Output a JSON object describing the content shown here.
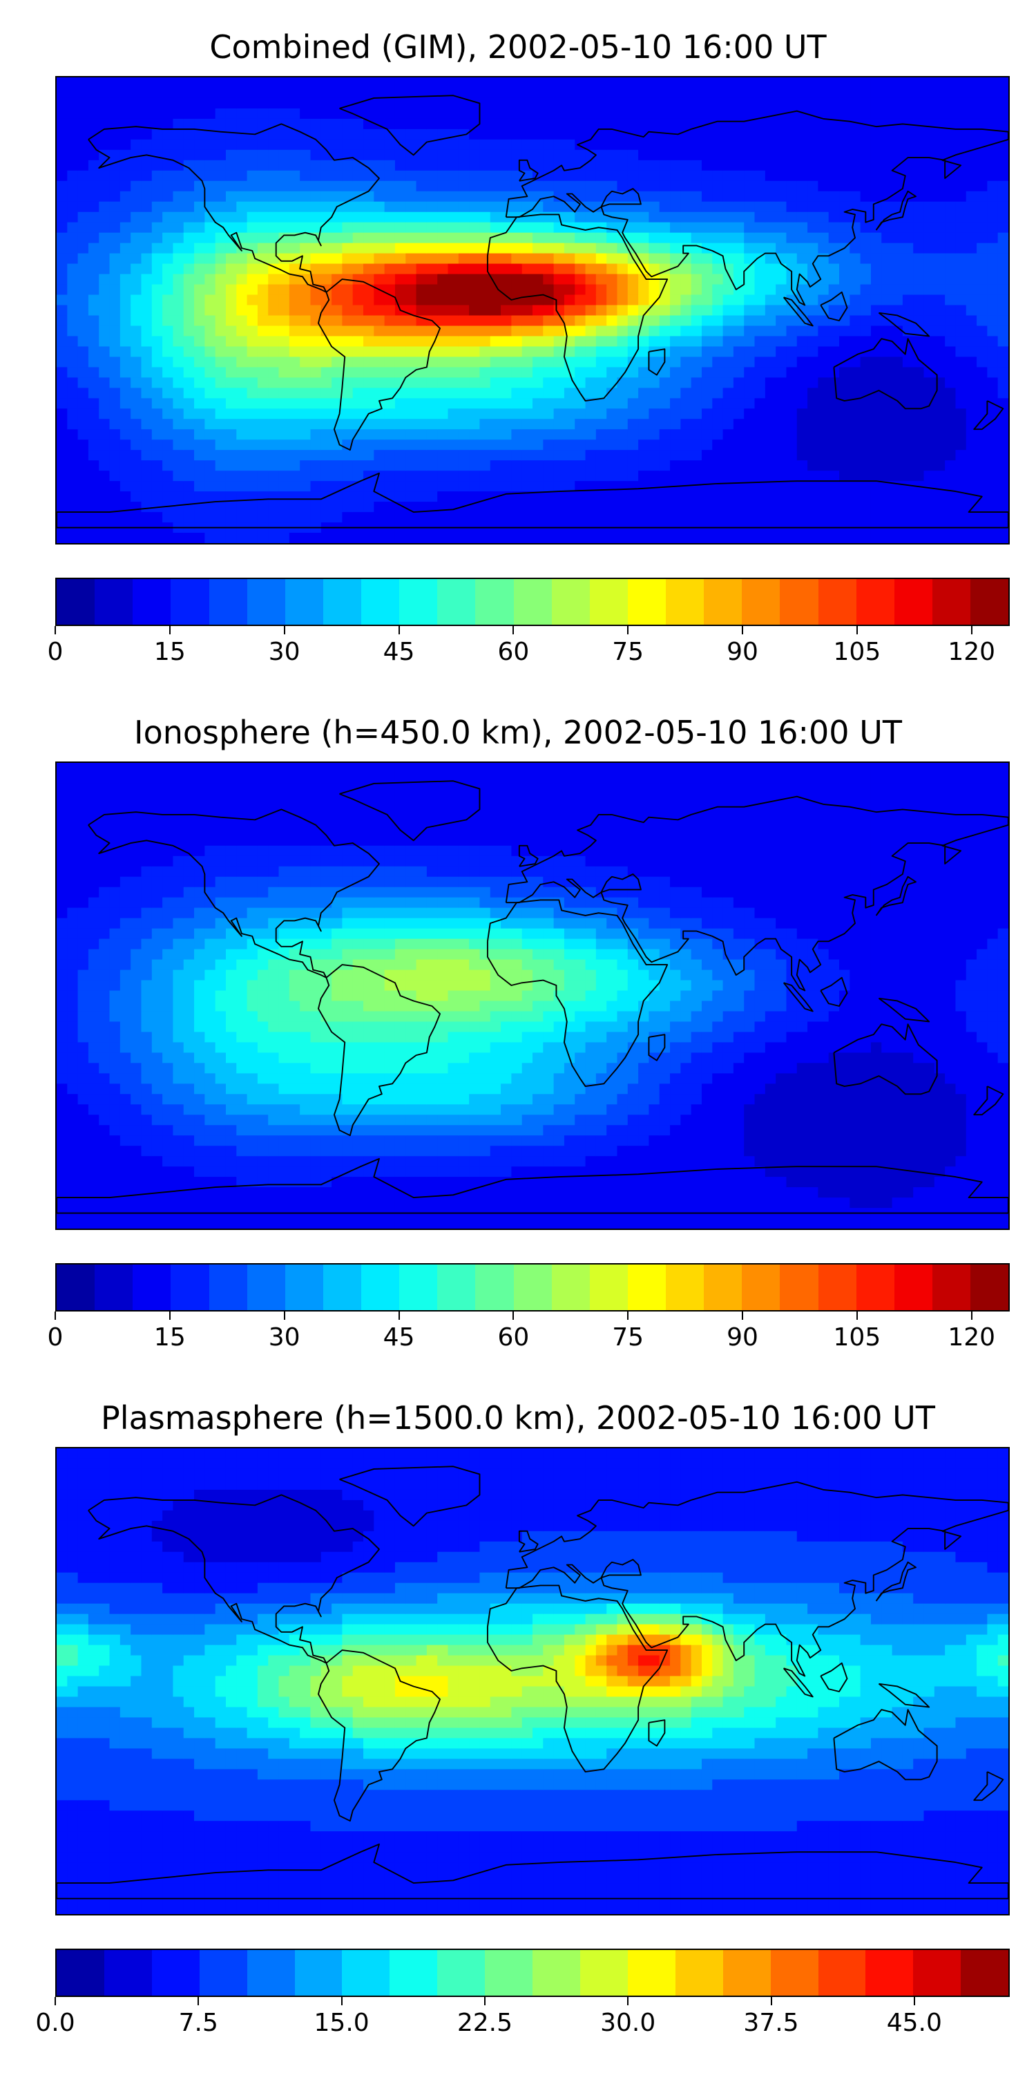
{
  "panels": [
    {
      "title": "Combined (GIM), 2002-05-10 16:00 UT",
      "colorbar": {
        "min": 0,
        "max": 125,
        "levels": 25,
        "ticks": [
          "0",
          "15",
          "30",
          "45",
          "60",
          "75",
          "90",
          "105",
          "120"
        ],
        "tick_values": [
          0,
          15,
          30,
          45,
          60,
          75,
          90,
          105,
          120
        ]
      },
      "field": {
        "background": 12,
        "blobs": [
          {
            "lon": -50,
            "lat": 0,
            "sx": 80,
            "sy": 30,
            "amp": 40
          },
          {
            "lon": -40,
            "lat": 7,
            "sx": 45,
            "sy": 15,
            "amp": 55
          },
          {
            "lon": 10,
            "lat": 8,
            "sx": 35,
            "sy": 12,
            "amp": 45
          },
          {
            "lon": -110,
            "lat": -10,
            "sx": 30,
            "sy": 40,
            "amp": 20
          },
          {
            "lon": 80,
            "lat": 15,
            "sx": 40,
            "sy": 15,
            "amp": 20
          },
          {
            "lon": -20,
            "lat": -35,
            "sx": 55,
            "sy": 15,
            "amp": 12
          },
          {
            "lon": 130,
            "lat": -35,
            "sx": 40,
            "sy": 20,
            "amp": -8
          }
        ]
      }
    },
    {
      "title": "Ionosphere  (h=450.0 km), 2002-05-10 16:00 UT",
      "colorbar": {
        "min": 0,
        "max": 125,
        "levels": 25,
        "ticks": [
          "0",
          "15",
          "30",
          "45",
          "60",
          "75",
          "90",
          "105",
          "120"
        ],
        "tick_values": [
          0,
          15,
          30,
          45,
          60,
          75,
          90,
          105,
          120
        ]
      },
      "field": {
        "background": 10,
        "blobs": [
          {
            "lon": -50,
            "lat": -5,
            "sx": 75,
            "sy": 32,
            "amp": 35
          },
          {
            "lon": -30,
            "lat": 10,
            "sx": 45,
            "sy": 15,
            "amp": 25
          },
          {
            "lon": -110,
            "lat": -10,
            "sx": 30,
            "sy": 35,
            "amp": 10
          },
          {
            "lon": 50,
            "lat": 5,
            "sx": 40,
            "sy": 14,
            "amp": 10
          },
          {
            "lon": -30,
            "lat": -40,
            "sx": 50,
            "sy": 12,
            "amp": 12
          },
          {
            "lon": 110,
            "lat": -40,
            "sx": 45,
            "sy": 15,
            "amp": -6
          }
        ]
      }
    },
    {
      "title": "Plasmasphere (h=1500.0 km), 2002-05-10 16:00 UT",
      "colorbar": {
        "min": 0,
        "max": 50,
        "levels": 20,
        "ticks": [
          "0.0",
          "7.5",
          "15.0",
          "22.5",
          "30.0",
          "37.5",
          "45.0"
        ],
        "tick_values": [
          0,
          7.5,
          15,
          22.5,
          30,
          37.5,
          45
        ]
      },
      "field": {
        "background": 7,
        "blobs": [
          {
            "lon": 10,
            "lat": 0,
            "sx": 110,
            "sy": 22,
            "amp": 18
          },
          {
            "lon": 45,
            "lat": 10,
            "sx": 18,
            "sy": 10,
            "amp": 20
          },
          {
            "lon": -55,
            "lat": -3,
            "sx": 35,
            "sy": 14,
            "amp": 8
          },
          {
            "lon": -175,
            "lat": 10,
            "sx": 15,
            "sy": 10,
            "amp": 9
          },
          {
            "lon": -100,
            "lat": 55,
            "sx": 40,
            "sy": 18,
            "amp": -4
          }
        ]
      }
    }
  ],
  "colors": {
    "coastline": "#000000",
    "jet": [
      "#00008f",
      "#0000ff",
      "#00ffff",
      "#ffff00",
      "#ff0000",
      "#800000"
    ]
  }
}
